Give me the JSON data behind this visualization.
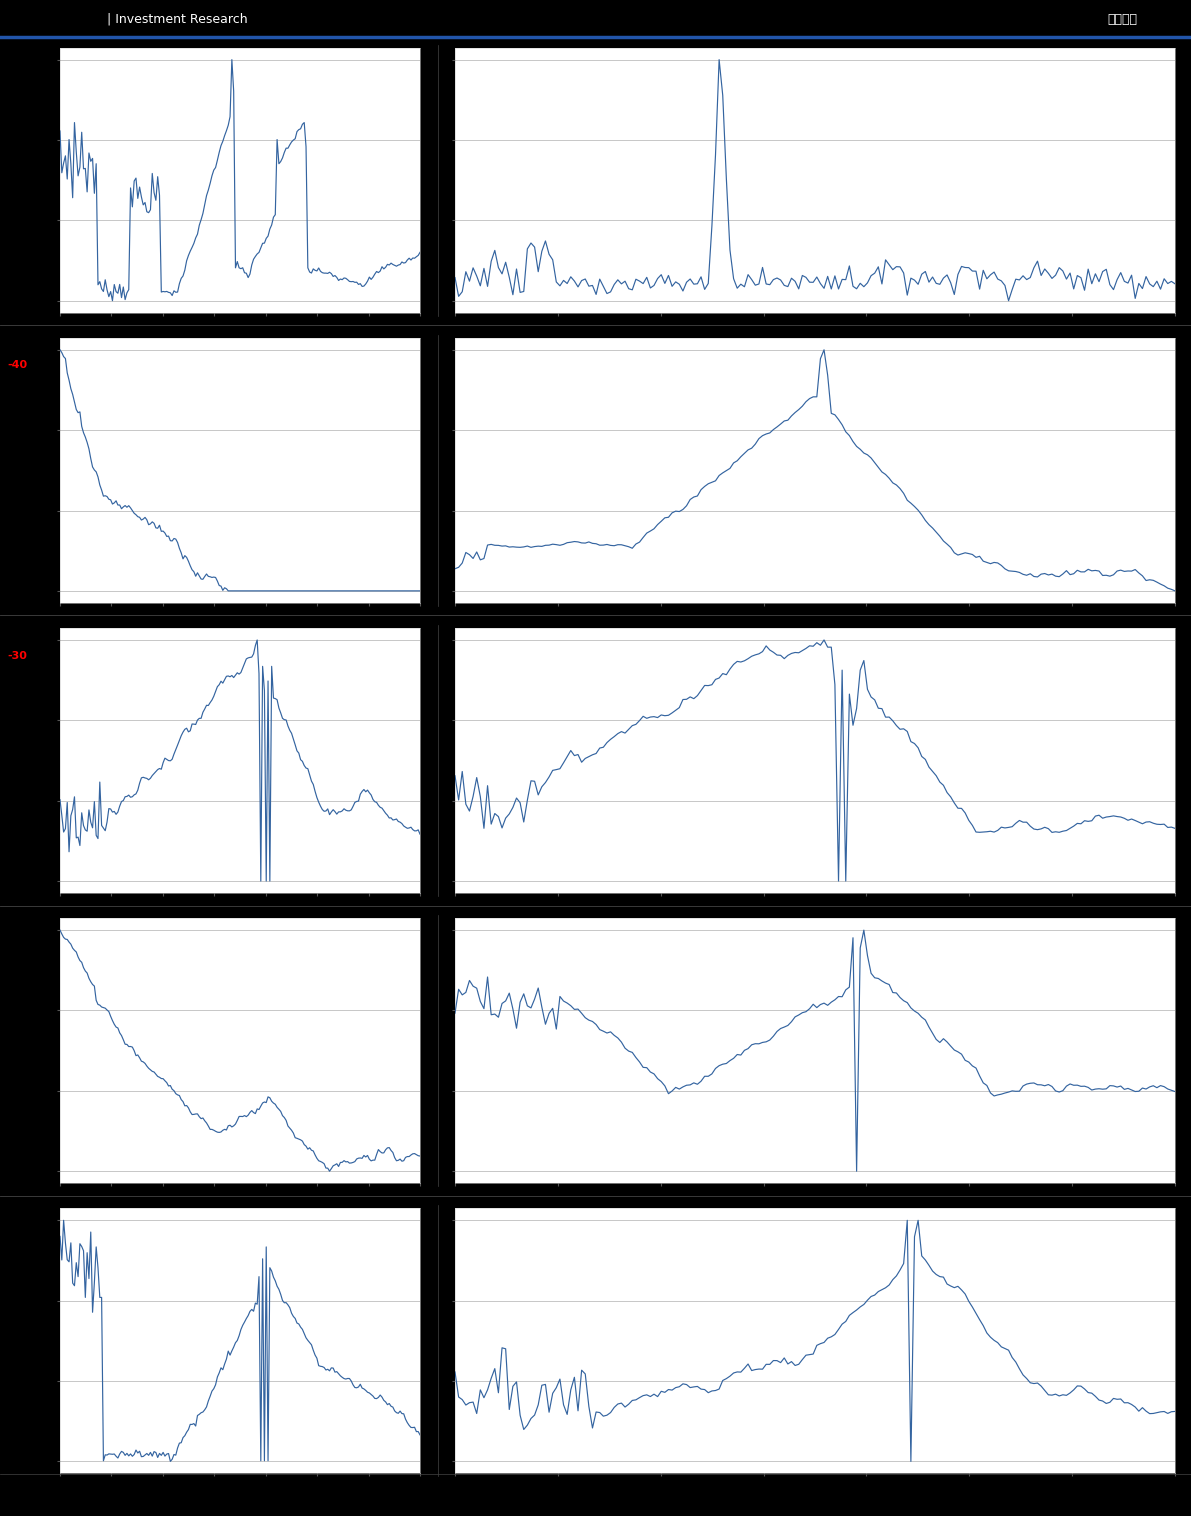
{
  "background_color": "#ffffff",
  "outer_bg": "#000000",
  "plot_bg": "#ffffff",
  "line_color": "#3464a0",
  "grid_color": "#b0b0b0",
  "header_text": "| Investment Research",
  "header_right": "估値周报",
  "footer_bar_color": "#3a5a8a",
  "red_label_1": "-40",
  "red_label_2": "-30",
  "header_bar_color": "#2255aa",
  "sep_color": "#555555",
  "nrows": 5,
  "ncols": 2,
  "figwidth": 11.91,
  "figheight": 15.16,
  "dpi": 100
}
